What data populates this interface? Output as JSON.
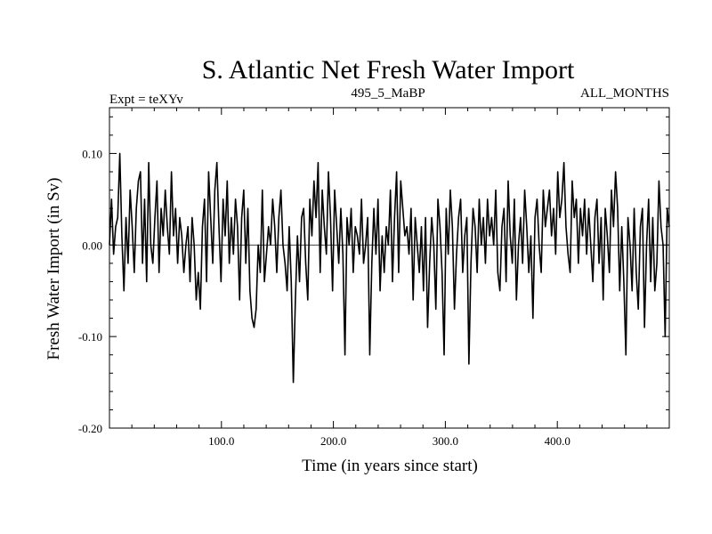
{
  "chart_data": {
    "type": "line",
    "title": "S. Atlantic Net Fresh Water Import",
    "subtitle_left": "Expt = teXYv",
    "subtitle_center": "495_5_MaBP",
    "subtitle_right": "ALL_MONTHS",
    "xlabel": "Time (in years since start)",
    "ylabel": "Fresh Water Import (in Sv)",
    "xlim": [
      0,
      500
    ],
    "ylim": [
      -0.2,
      0.15
    ],
    "xticks": [
      100,
      200,
      300,
      400
    ],
    "xtick_labels": [
      "100.0",
      "200.0",
      "300.0",
      "400.0"
    ],
    "yticks": [
      0.1,
      0.0,
      -0.1,
      -0.2
    ],
    "ytick_labels": [
      "0.10",
      "0.00",
      "-0.10",
      "-0.20"
    ],
    "zero_line": true,
    "grid": false,
    "series": [
      {
        "values": [
          0.0,
          0.05,
          -0.01,
          0.02,
          0.03,
          0.1,
          0.01,
          -0.05,
          0.03,
          -0.02,
          0.06,
          0.02,
          -0.03,
          0.04,
          0.07,
          0.08,
          -0.02,
          0.05,
          -0.04,
          0.09,
          0.0,
          -0.02,
          0.03,
          0.07,
          -0.03,
          0.04,
          0.01,
          0.06,
          0.02,
          -0.01,
          0.08,
          0.01,
          0.04,
          -0.02,
          0.03,
          0.01,
          -0.03,
          0.0,
          0.02,
          -0.04,
          0.03,
          0.0,
          -0.06,
          -0.03,
          -0.07,
          0.02,
          0.05,
          -0.04,
          0.08,
          0.03,
          -0.02,
          0.06,
          0.09,
          0.02,
          -0.04,
          0.05,
          0.01,
          0.07,
          -0.02,
          0.03,
          -0.01,
          0.05,
          0.02,
          -0.06,
          0.03,
          0.06,
          -0.02,
          0.04,
          -0.05,
          -0.08,
          -0.09,
          -0.07,
          0.0,
          -0.03,
          0.06,
          -0.04,
          -0.01,
          0.02,
          0.0,
          0.05,
          0.02,
          -0.03,
          0.03,
          0.06,
          0.0,
          -0.02,
          -0.05,
          0.02,
          -0.04,
          -0.15,
          -0.06,
          0.01,
          -0.04,
          0.03,
          0.04,
          -0.02,
          -0.06,
          0.05,
          0.01,
          0.07,
          0.03,
          0.09,
          -0.03,
          0.06,
          0.02,
          -0.01,
          0.08,
          0.03,
          -0.05,
          0.06,
          0.02,
          -0.02,
          0.04,
          -0.01,
          -0.12,
          0.03,
          0.0,
          0.04,
          -0.03,
          0.02,
          0.01,
          -0.01,
          0.05,
          -0.02,
          0.0,
          0.03,
          -0.12,
          -0.02,
          0.04,
          -0.01,
          0.05,
          -0.05,
          0.01,
          -0.03,
          0.02,
          0.0,
          0.06,
          -0.04,
          0.03,
          0.08,
          -0.03,
          0.07,
          0.04,
          0.01,
          0.02,
          -0.01,
          0.04,
          -0.06,
          0.03,
          0.0,
          -0.03,
          0.02,
          -0.05,
          0.03,
          -0.09,
          -0.02,
          0.03,
          0.0,
          -0.07,
          0.05,
          0.02,
          -0.03,
          -0.12,
          0.04,
          -0.01,
          0.06,
          0.02,
          -0.07,
          -0.01,
          0.03,
          0.05,
          -0.03,
          0.01,
          0.03,
          -0.13,
          -0.02,
          0.04,
          0.02,
          -0.03,
          0.05,
          0.0,
          0.03,
          -0.02,
          0.05,
          0.01,
          0.03,
          0.0,
          0.06,
          -0.03,
          -0.05,
          0.02,
          0.04,
          -0.04,
          0.07,
          0.01,
          -0.02,
          0.05,
          -0.06,
          0.0,
          0.03,
          -0.02,
          0.06,
          0.02,
          -0.03,
          0.01,
          -0.08,
          0.03,
          0.05,
          0.0,
          -0.03,
          0.06,
          0.02,
          0.04,
          0.06,
          0.01,
          0.04,
          -0.01,
          0.08,
          0.03,
          0.05,
          0.09,
          0.02,
          -0.01,
          -0.03,
          0.07,
          0.03,
          0.05,
          -0.02,
          0.04,
          0.01,
          0.05,
          -0.01,
          0.04,
          0.0,
          -0.04,
          0.03,
          0.05,
          -0.02,
          0.03,
          -0.06,
          0.04,
          0.01,
          -0.03,
          0.06,
          0.02,
          0.08,
          0.04,
          -0.05,
          0.02,
          -0.04,
          -0.12,
          0.03,
          0.0,
          -0.05,
          0.04,
          -0.03,
          -0.07,
          0.02,
          0.04,
          -0.09,
          0.0,
          0.05,
          -0.04,
          0.03,
          -0.05,
          -0.02,
          0.07,
          0.02,
          0.0,
          -0.1,
          0.04,
          0.02
        ],
        "color": "#000000"
      }
    ]
  }
}
